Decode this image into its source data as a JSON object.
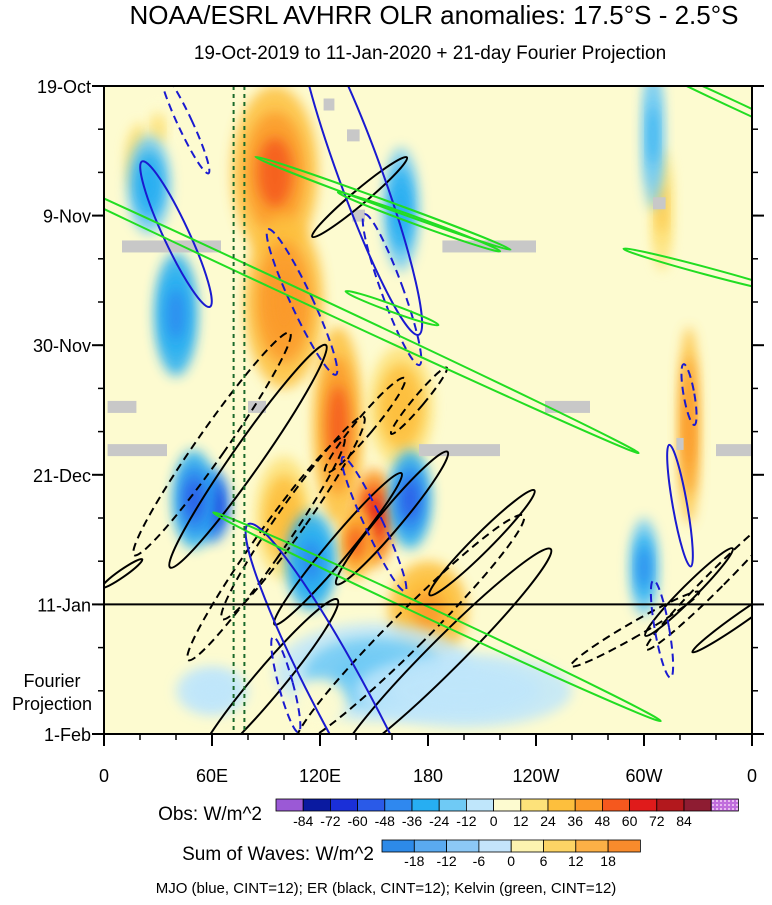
{
  "chart_data": {
    "type": "heatmap",
    "title": "NOAA/ESRL AVHRR OLR anomalies: 17.5°S - 2.5°S",
    "subtitle": "19-Oct-2019 to 11-Jan-2020 + 21-day Fourier Projection",
    "x_ticks": [
      "0",
      "60E",
      "120E",
      "180",
      "120W",
      "60W",
      "0"
    ],
    "x_tick_lons": [
      0,
      60,
      120,
      180,
      240,
      300,
      360
    ],
    "y_ticks": [
      "19-Oct",
      "9-Nov",
      "30-Nov",
      "21-Dec",
      "11-Jan",
      "1-Feb"
    ],
    "y_tick_days": [
      0,
      21,
      42,
      63,
      84,
      105
    ],
    "projection_start_day": 84,
    "projection_label_line1": "Fourier",
    "projection_label_line2": "Projection",
    "reference_lines_lon": [
      72,
      78
    ],
    "obs_colorbar": {
      "label": "Obs: W/m^2",
      "levels": [
        "-84",
        "-72",
        "-60",
        "-48",
        "-36",
        "-24",
        "-12",
        "0",
        "12",
        "24",
        "36",
        "48",
        "60",
        "72",
        "84"
      ],
      "colors": [
        "#9b59d6",
        "#0a1aa0",
        "#1a2fd8",
        "#2a5ae8",
        "#2f88ef",
        "#27aef2",
        "#6fcaf5",
        "#bfe6fb",
        "#fdfbd0",
        "#fde27a",
        "#fdbf3d",
        "#fb9a2a",
        "#f5581e",
        "#e01b1b",
        "#b3181d",
        "#8e1c32",
        "#d88ad8"
      ]
    },
    "waves_colorbar": {
      "label": "Sum of Waves: W/m^2",
      "levels": [
        "-18",
        "-12",
        "-6",
        "0",
        "6",
        "12",
        "18"
      ],
      "colors": [
        "#2d8ae8",
        "#5aaaf0",
        "#8cc8f6",
        "#c4e4fb",
        "#fdf3b0",
        "#fdd465",
        "#fcb046",
        "#f88b2c"
      ]
    },
    "contours": {
      "MJO": {
        "color": "#1a1ad0",
        "cint": 12
      },
      "ER": {
        "color": "#000000",
        "cint": 12
      },
      "Kelvin": {
        "color": "#22dd22",
        "cint": 12
      }
    },
    "footer": "MJO (blue, CINT=12); ER (black, CINT=12); Kelvin (green, CINT=12)",
    "features": [
      {
        "lon": 95,
        "day": 14,
        "rlon": 24,
        "rday": 14,
        "v": 50
      },
      {
        "lon": 100,
        "day": 35,
        "rlon": 22,
        "rday": 14,
        "v": 45
      },
      {
        "lon": 130,
        "day": 55,
        "rlon": 14,
        "rday": 16,
        "v": 55
      },
      {
        "lon": 150,
        "day": 70,
        "rlon": 12,
        "rday": 8,
        "v": 60
      },
      {
        "lon": 140,
        "day": 74,
        "rlon": 10,
        "rday": 6,
        "v": 55
      },
      {
        "lon": 180,
        "day": 85,
        "rlon": 22,
        "rday": 8,
        "v": 40
      },
      {
        "lon": 100,
        "day": 70,
        "rlon": 16,
        "rday": 10,
        "v": 30
      },
      {
        "lon": 165,
        "day": 52,
        "rlon": 18,
        "rday": 10,
        "v": 35
      },
      {
        "lon": 325,
        "day": 55,
        "rlon": 6,
        "rday": 16,
        "v": 45
      },
      {
        "lon": 310,
        "day": 20,
        "rlon": 6,
        "rday": 10,
        "v": 28
      },
      {
        "lon": 20,
        "day": 12,
        "rlon": 8,
        "rday": 6,
        "v": 22
      },
      {
        "lon": 30,
        "day": 7,
        "rlon": 6,
        "rday": 4,
        "v": 18
      },
      {
        "lon": 60,
        "day": 68,
        "rlon": 10,
        "rday": 6,
        "v": -65
      },
      {
        "lon": 50,
        "day": 67,
        "rlon": 12,
        "rday": 8,
        "v": -50
      },
      {
        "lon": 40,
        "day": 37,
        "rlon": 12,
        "rday": 10,
        "v": -45
      },
      {
        "lon": 25,
        "day": 16,
        "rlon": 12,
        "rday": 8,
        "v": -35
      },
      {
        "lon": 115,
        "day": 77,
        "rlon": 14,
        "rday": 8,
        "v": -45
      },
      {
        "lon": 170,
        "day": 67,
        "rlon": 12,
        "rday": 8,
        "v": -55
      },
      {
        "lon": 165,
        "day": 20,
        "rlon": 10,
        "rday": 10,
        "v": -35
      },
      {
        "lon": 300,
        "day": 78,
        "rlon": 8,
        "rday": 8,
        "v": -40
      },
      {
        "lon": 305,
        "day": 8,
        "rlon": 6,
        "rday": 12,
        "v": -28
      },
      {
        "lon": 150,
        "day": 95,
        "rlon": 55,
        "rday": 8,
        "v": -18
      },
      {
        "lon": 200,
        "day": 98,
        "rlon": 60,
        "rday": 6,
        "v": -10
      },
      {
        "lon": 120,
        "day": 100,
        "rlon": 15,
        "rday": 4,
        "v": 10
      },
      {
        "lon": 60,
        "day": 98,
        "rlon": 20,
        "rday": 4,
        "v": -8
      }
    ],
    "mjo_contours": [
      {
        "lon": 142,
        "day": 14,
        "rx": 12,
        "ry": 28,
        "rot": -20,
        "dash": false
      },
      {
        "lon": 40,
        "day": 24,
        "rx": 7,
        "ry": 13,
        "rot": -25,
        "dash": false
      },
      {
        "lon": 160,
        "day": 33,
        "rx": 6,
        "ry": 13,
        "rot": -20,
        "dash": true
      },
      {
        "lon": 110,
        "day": 35,
        "rx": 6,
        "ry": 13,
        "rot": -25,
        "dash": true
      },
      {
        "lon": 150,
        "day": 71,
        "rx": 5,
        "ry": 12,
        "rot": -25,
        "dash": true
      },
      {
        "lon": 135,
        "day": 101,
        "rx": 15,
        "ry": 34,
        "rot": -28,
        "dash": false
      },
      {
        "lon": 320,
        "day": 68,
        "rx": 4,
        "ry": 10,
        "rot": -10,
        "dash": false
      },
      {
        "lon": 325,
        "day": 50,
        "rx": 3,
        "ry": 5,
        "rot": -10,
        "dash": true
      },
      {
        "lon": 310,
        "day": 88,
        "rx": 4,
        "ry": 8,
        "rot": -10,
        "dash": true
      },
      {
        "lon": 101,
        "day": 97,
        "rx": 4,
        "ry": 8,
        "rot": -15,
        "dash": true
      },
      {
        "lon": 45,
        "day": 6,
        "rx": 4,
        "ry": 9,
        "rot": -25,
        "dash": true
      }
    ],
    "er_contours": [
      {
        "lon": 60,
        "day": 58,
        "rx": 8,
        "ry": 22,
        "rot": 35,
        "dash": true
      },
      {
        "lon": 80,
        "day": 60,
        "rx": 8,
        "ry": 22,
        "rot": 35,
        "dash": false
      },
      {
        "lon": 90,
        "day": 75,
        "rx": 8,
        "ry": 22,
        "rot": 35,
        "dash": true
      },
      {
        "lon": 105,
        "day": 70,
        "rx": 8,
        "ry": 20,
        "rot": 35,
        "dash": true
      },
      {
        "lon": 130,
        "day": 75,
        "rx": 6,
        "ry": 16,
        "rot": 40,
        "dash": false
      },
      {
        "lon": 160,
        "day": 70,
        "rx": 6,
        "ry": 14,
        "rot": 40,
        "dash": false
      },
      {
        "lon": 145,
        "day": 55,
        "rx": 5,
        "ry": 10,
        "rot": 40,
        "dash": true
      },
      {
        "lon": 170,
        "day": 88,
        "rx": 10,
        "ry": 26,
        "rot": 45,
        "dash": true
      },
      {
        "lon": 190,
        "day": 92,
        "rx": 9,
        "ry": 24,
        "rot": 45,
        "dash": false
      },
      {
        "lon": 210,
        "day": 74,
        "rx": 5,
        "ry": 12,
        "rot": 45,
        "dash": false
      },
      {
        "lon": 340,
        "day": 80,
        "rx": 5,
        "ry": 16,
        "rot": 45,
        "dash": true
      },
      {
        "lon": 325,
        "day": 82,
        "rx": 4,
        "ry": 10,
        "rot": 45,
        "dash": false
      },
      {
        "lon": 90,
        "day": 97,
        "rx": 8,
        "ry": 18,
        "rot": 40,
        "dash": false
      },
      {
        "lon": 142,
        "day": 18,
        "rx": 4,
        "ry": 10,
        "rot": 50,
        "dash": false
      },
      {
        "lon": 295,
        "day": 88,
        "rx": 4,
        "ry": 12,
        "rot": 60,
        "dash": true
      },
      {
        "lon": 355,
        "day": 86,
        "rx": 3,
        "ry": 10,
        "rot": 55,
        "dash": false
      },
      {
        "lon": 10,
        "day": 79,
        "rx": 2,
        "ry": 4,
        "rot": 55,
        "dash": false
      },
      {
        "lon": 175,
        "day": 51,
        "rx": 3,
        "ry": 7,
        "rot": 40,
        "dash": true
      }
    ],
    "kelvin_contours": [
      {
        "lon": 95,
        "day": 32,
        "rx": 3,
        "ry": 65,
        "rot": -65
      },
      {
        "lon": 185,
        "day": 86,
        "rx": 3,
        "ry": 40,
        "rot": -65
      },
      {
        "lon": 155,
        "day": 19,
        "rx": 2,
        "ry": 22,
        "rot": -70
      },
      {
        "lon": 175,
        "day": 22,
        "rx": 2,
        "ry": 14,
        "rot": -70
      },
      {
        "lon": 335,
        "day": 30,
        "rx": 2,
        "ry": 14,
        "rot": -75
      },
      {
        "lon": 350,
        "day": 3,
        "rx": 2,
        "ry": 18,
        "rot": -65
      },
      {
        "lon": 160,
        "day": 36,
        "rx": 2,
        "ry": 8,
        "rot": -70
      }
    ],
    "missing_segments": [
      {
        "lon0": 10,
        "lon1": 65,
        "day": 26
      },
      {
        "lon0": 188,
        "day": 26,
        "lon1": 240
      },
      {
        "lon0": 2,
        "lon1": 18,
        "day": 52
      },
      {
        "lon0": 80,
        "lon1": 90,
        "day": 52
      },
      {
        "lon0": 245,
        "lon1": 270,
        "day": 52
      },
      {
        "lon0": 2,
        "lon1": 35,
        "day": 59
      },
      {
        "lon0": 175,
        "lon1": 220,
        "day": 59
      },
      {
        "lon0": 340,
        "lon1": 360,
        "day": 59
      },
      {
        "lon0": 122,
        "lon1": 128,
        "day": 3
      },
      {
        "lon0": 135,
        "lon1": 142,
        "day": 8
      },
      {
        "lon0": 305,
        "lon1": 312,
        "day": 19
      },
      {
        "lon0": 138,
        "lon1": 145,
        "day": 21
      },
      {
        "lon0": 318,
        "lon1": 322,
        "day": 58
      }
    ]
  }
}
